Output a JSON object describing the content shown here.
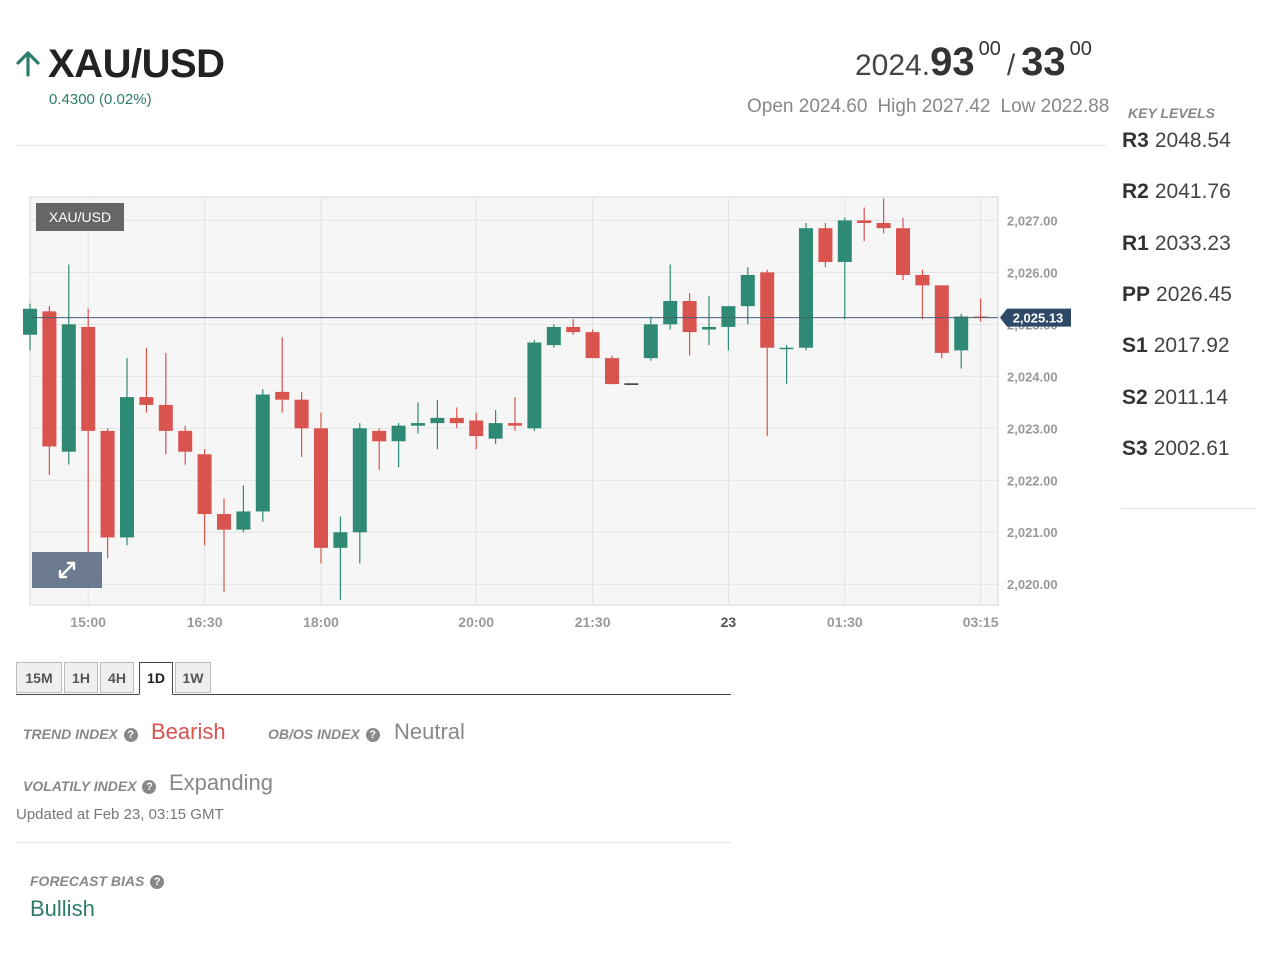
{
  "header": {
    "symbol": "XAU/USD",
    "change": "0.4300 (0.02%)",
    "arrow_icon": "arrow-up-icon",
    "price": {
      "int_part": "2024.",
      "big_part": "93",
      "small_part": "00",
      "separator": "/",
      "big_part2": "33",
      "small_part2": "00"
    },
    "open": "Open 2024.60",
    "high": "High 2027.42",
    "low": "Low 2022.88"
  },
  "key_levels": {
    "title": "KEY LEVELS",
    "items": [
      {
        "label": "R3",
        "value": "2048.54"
      },
      {
        "label": "R2",
        "value": "2041.76"
      },
      {
        "label": "R1",
        "value": "2033.23"
      },
      {
        "label": "PP",
        "value": "2026.45"
      },
      {
        "label": "S1",
        "value": "2017.92"
      },
      {
        "label": "S2",
        "value": "2011.14"
      },
      {
        "label": "S3",
        "value": "2002.61"
      }
    ]
  },
  "chart_data": {
    "type": "candlestick",
    "symbol_tag": "XAU/USD",
    "current_price_label": "2,025.13",
    "current_price": 2025.13,
    "ylim": [
      2019.6,
      2027.45
    ],
    "y_ticks": [
      {
        "value": 2027,
        "label": "2,027.00"
      },
      {
        "value": 2026,
        "label": "2,026.00"
      },
      {
        "value": 2025,
        "label": "2,025.00"
      },
      {
        "value": 2024,
        "label": "2,024.00"
      },
      {
        "value": 2023,
        "label": "2,023.00"
      },
      {
        "value": 2022,
        "label": "2,022.00"
      },
      {
        "value": 2021,
        "label": "2,021.00"
      },
      {
        "value": 2020,
        "label": "2,020.00"
      }
    ],
    "x_ticks": [
      {
        "index": 3,
        "label": "15:00",
        "bold": false
      },
      {
        "index": 9,
        "label": "16:30",
        "bold": false
      },
      {
        "index": 15,
        "label": "18:00",
        "bold": false
      },
      {
        "index": 23,
        "label": "20:00",
        "bold": false
      },
      {
        "index": 29,
        "label": "21:30",
        "bold": false
      },
      {
        "index": 36,
        "label": "23",
        "bold": true
      },
      {
        "index": 42,
        "label": "01:30",
        "bold": false
      },
      {
        "index": 49,
        "label": "03:15",
        "bold": false
      }
    ],
    "candles": [
      {
        "o": 2024.8,
        "h": 2025.4,
        "l": 2024.5,
        "c": 2025.3
      },
      {
        "o": 2025.25,
        "h": 2025.35,
        "l": 2022.1,
        "c": 2022.65
      },
      {
        "o": 2022.55,
        "h": 2026.15,
        "l": 2022.3,
        "c": 2025.0
      },
      {
        "o": 2024.95,
        "h": 2025.3,
        "l": 2020.4,
        "c": 2022.95
      },
      {
        "o": 2022.95,
        "h": 2023.0,
        "l": 2020.5,
        "c": 2020.9
      },
      {
        "o": 2020.9,
        "h": 2024.35,
        "l": 2020.75,
        "c": 2023.6
      },
      {
        "o": 2023.6,
        "h": 2024.55,
        "l": 2023.3,
        "c": 2023.45
      },
      {
        "o": 2023.45,
        "h": 2024.45,
        "l": 2022.5,
        "c": 2022.95
      },
      {
        "o": 2022.95,
        "h": 2023.05,
        "l": 2022.3,
        "c": 2022.55
      },
      {
        "o": 2022.5,
        "h": 2022.6,
        "l": 2020.75,
        "c": 2021.35
      },
      {
        "o": 2021.35,
        "h": 2021.65,
        "l": 2019.85,
        "c": 2021.05
      },
      {
        "o": 2021.05,
        "h": 2021.9,
        "l": 2021.0,
        "c": 2021.4
      },
      {
        "o": 2021.4,
        "h": 2023.75,
        "l": 2021.2,
        "c": 2023.65
      },
      {
        "o": 2023.7,
        "h": 2024.75,
        "l": 2023.3,
        "c": 2023.55
      },
      {
        "o": 2023.55,
        "h": 2023.7,
        "l": 2022.45,
        "c": 2023.0
      },
      {
        "o": 2023.0,
        "h": 2023.3,
        "l": 2020.4,
        "c": 2020.7
      },
      {
        "o": 2020.7,
        "h": 2021.3,
        "l": 2019.7,
        "c": 2021.0
      },
      {
        "o": 2021.0,
        "h": 2023.1,
        "l": 2020.4,
        "c": 2023.0
      },
      {
        "o": 2022.95,
        "h": 2023.0,
        "l": 2022.2,
        "c": 2022.75
      },
      {
        "o": 2022.75,
        "h": 2023.1,
        "l": 2022.25,
        "c": 2023.05
      },
      {
        "o": 2023.05,
        "h": 2023.5,
        "l": 2022.9,
        "c": 2023.1
      },
      {
        "o": 2023.1,
        "h": 2023.55,
        "l": 2022.6,
        "c": 2023.2
      },
      {
        "o": 2023.2,
        "h": 2023.4,
        "l": 2023.0,
        "c": 2023.1
      },
      {
        "o": 2023.15,
        "h": 2023.3,
        "l": 2022.6,
        "c": 2022.85
      },
      {
        "o": 2022.8,
        "h": 2023.35,
        "l": 2022.7,
        "c": 2023.1
      },
      {
        "o": 2023.1,
        "h": 2023.6,
        "l": 2022.95,
        "c": 2023.05
      },
      {
        "o": 2023.0,
        "h": 2024.7,
        "l": 2022.95,
        "c": 2024.65
      },
      {
        "o": 2024.6,
        "h": 2025.0,
        "l": 2024.55,
        "c": 2024.95
      },
      {
        "o": 2024.95,
        "h": 2025.1,
        "l": 2024.8,
        "c": 2024.85
      },
      {
        "o": 2024.85,
        "h": 2024.9,
        "l": 2024.35,
        "c": 2024.35
      },
      {
        "o": 2024.35,
        "h": 2024.4,
        "l": 2023.85,
        "c": 2023.85
      },
      {
        "o": 2023.85,
        "h": 2023.85,
        "l": 2023.85,
        "c": 2023.85
      },
      {
        "o": 2024.35,
        "h": 2025.15,
        "l": 2024.3,
        "c": 2025.0
      },
      {
        "o": 2025.0,
        "h": 2026.15,
        "l": 2024.9,
        "c": 2025.45
      },
      {
        "o": 2025.45,
        "h": 2025.6,
        "l": 2024.4,
        "c": 2024.85
      },
      {
        "o": 2024.9,
        "h": 2025.55,
        "l": 2024.6,
        "c": 2024.95
      },
      {
        "o": 2024.95,
        "h": 2025.35,
        "l": 2024.5,
        "c": 2025.35
      },
      {
        "o": 2025.35,
        "h": 2026.1,
        "l": 2025.0,
        "c": 2025.95
      },
      {
        "o": 2026.0,
        "h": 2026.05,
        "l": 2022.85,
        "c": 2024.55
      },
      {
        "o": 2024.55,
        "h": 2024.6,
        "l": 2023.85,
        "c": 2024.55
      },
      {
        "o": 2024.55,
        "h": 2026.95,
        "l": 2024.5,
        "c": 2026.85
      },
      {
        "o": 2026.85,
        "h": 2026.95,
        "l": 2026.1,
        "c": 2026.2
      },
      {
        "o": 2026.2,
        "h": 2027.05,
        "l": 2025.1,
        "c": 2027.0
      },
      {
        "o": 2027.0,
        "h": 2027.25,
        "l": 2026.6,
        "c": 2026.95
      },
      {
        "o": 2026.95,
        "h": 2027.42,
        "l": 2026.75,
        "c": 2026.85
      },
      {
        "o": 2026.85,
        "h": 2027.05,
        "l": 2025.85,
        "c": 2025.95
      },
      {
        "o": 2025.95,
        "h": 2026.05,
        "l": 2025.1,
        "c": 2025.75
      },
      {
        "o": 2025.75,
        "h": 2025.75,
        "l": 2024.35,
        "c": 2024.45
      },
      {
        "o": 2024.5,
        "h": 2025.2,
        "l": 2024.15,
        "c": 2025.15
      },
      {
        "o": 2025.15,
        "h": 2025.5,
        "l": 2025.05,
        "c": 2025.13
      }
    ]
  },
  "timeframes": [
    {
      "label": "15M",
      "active": false
    },
    {
      "label": "1H",
      "active": false
    },
    {
      "label": "4H",
      "active": false
    },
    {
      "label": "1D",
      "active": true
    },
    {
      "label": "1W",
      "active": false
    }
  ],
  "indices": {
    "trend_label": "TREND INDEX",
    "trend_value": "Bearish",
    "obos_label": "OB/OS INDEX",
    "obos_value": "Neutral",
    "volatility_label": "VOLATILY INDEX",
    "volatility_value": "Expanding",
    "updated": "Updated at Feb 23, 03:15 GMT"
  },
  "forecast": {
    "label": "FORECAST BIAS",
    "value": "Bullish"
  },
  "help_glyph": "?",
  "colors": {
    "up": "#2e8a74",
    "down": "#d9534f",
    "bearish_text": "#d9534f",
    "bullish_text": "#2e7d6b",
    "neutral_text": "#888888"
  }
}
